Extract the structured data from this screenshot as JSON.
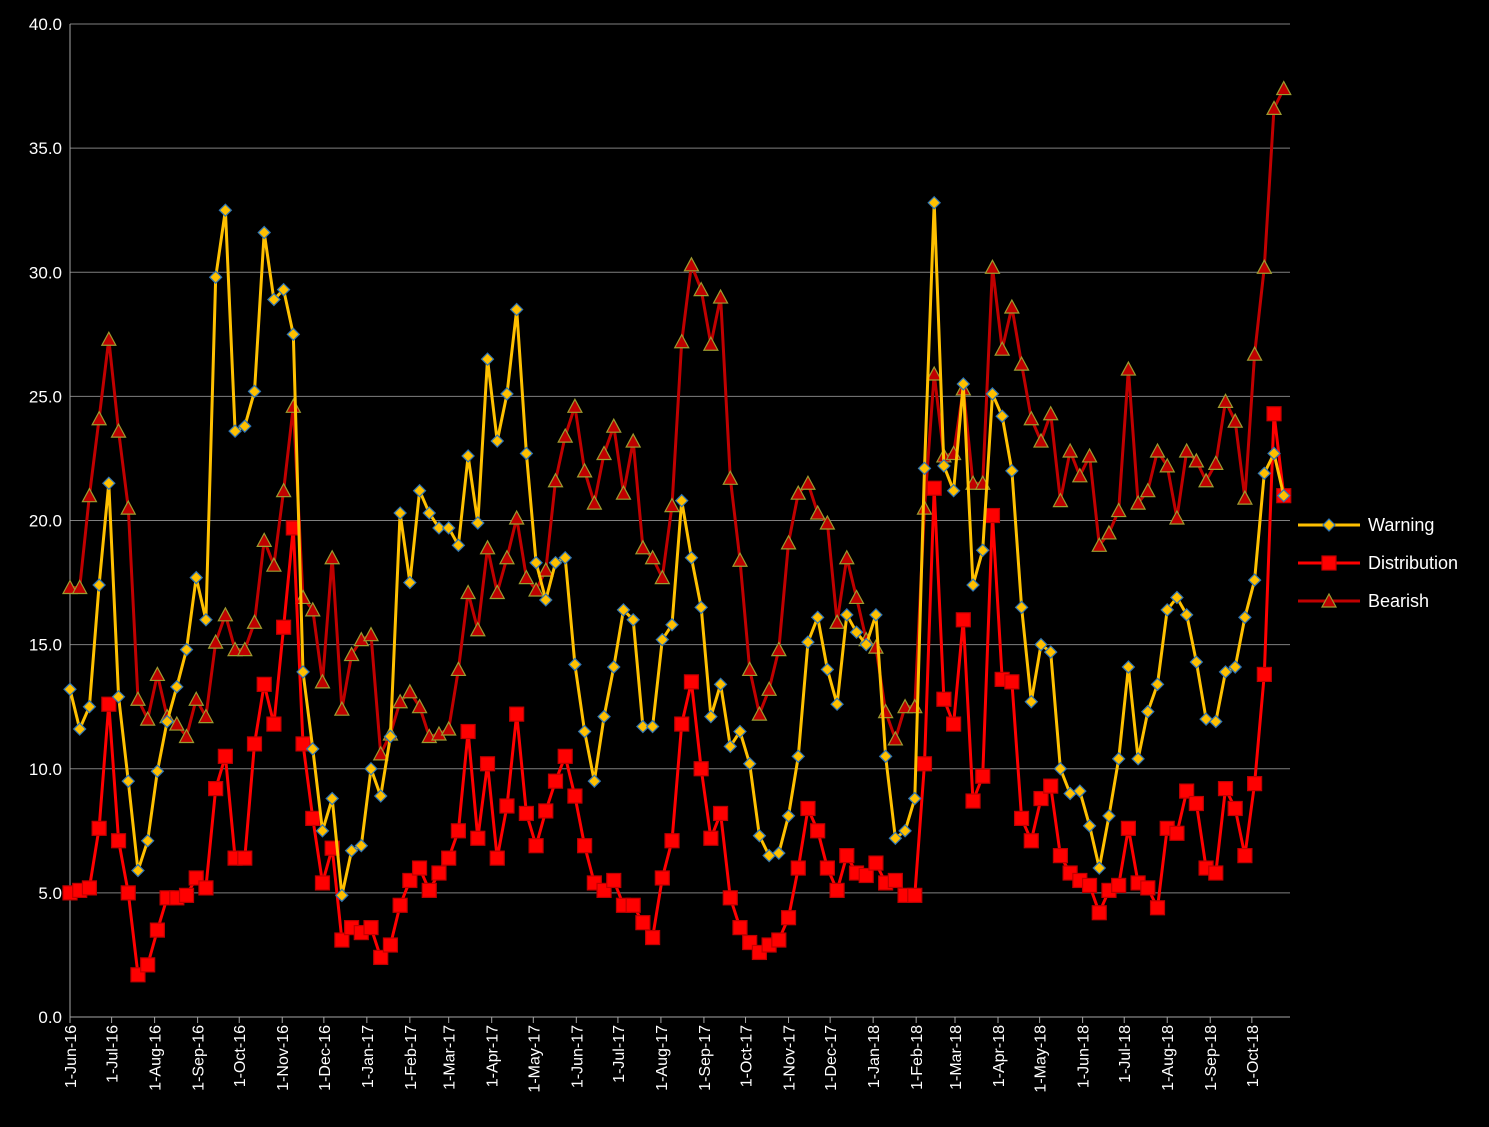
{
  "chart_data": {
    "type": "line",
    "title": "",
    "xlabel": "",
    "ylabel": "",
    "ylim": [
      0,
      40
    ],
    "yticks": [
      "0.0",
      "5.0",
      "10.0",
      "15.0",
      "20.0",
      "25.0",
      "30.0",
      "35.0",
      "40.0"
    ],
    "x_tick_labels": [
      "1-Jun-16",
      "1-Jul-16",
      "1-Aug-16",
      "1-Sep-16",
      "1-Oct-16",
      "1-Nov-16",
      "1-Dec-16",
      "1-Jan-17",
      "1-Feb-17",
      "1-Mar-17",
      "1-Apr-17",
      "1-May-17",
      "1-Jun-17",
      "1-Jul-17",
      "1-Aug-17",
      "1-Sep-17",
      "1-Oct-17",
      "1-Nov-17",
      "1-Dec-17",
      "1-Jan-18",
      "1-Feb-18",
      "1-Mar-18",
      "1-Apr-18",
      "1-May-18",
      "1-Jun-18",
      "1-Jul-18",
      "1-Aug-18",
      "1-Sep-18",
      "1-Oct-18"
    ],
    "x_note": "weekly observations starting 1-Jun-16",
    "gridlines": "horizontal",
    "legend_position": "right",
    "series": [
      {
        "name": "Warning",
        "color": "#FFC000",
        "marker": "diamond",
        "marker_fill": "#FFC000",
        "marker_edge": "#2E75B6",
        "values": [
          13.2,
          11.6,
          12.5,
          17.4,
          21.5,
          12.9,
          9.5,
          5.9,
          7.1,
          9.9,
          11.9,
          13.3,
          14.8,
          17.7,
          16.0,
          29.8,
          32.5,
          23.6,
          23.8,
          25.2,
          31.6,
          28.9,
          29.3,
          27.5,
          13.9,
          10.8,
          7.5,
          8.8,
          4.9,
          6.7,
          6.9,
          10.0,
          8.9,
          11.3,
          20.3,
          17.5,
          21.2,
          20.3,
          19.7,
          19.7,
          19.0,
          22.6,
          19.9,
          26.5,
          23.2,
          25.1,
          28.5,
          22.7,
          18.3,
          16.8,
          18.3,
          18.5,
          14.2,
          11.5,
          9.5,
          12.1,
          14.1,
          16.4,
          16.0,
          11.7,
          11.7,
          15.2,
          15.8,
          20.8,
          18.5,
          16.5,
          12.1,
          13.4,
          10.9,
          11.5,
          10.2,
          7.3,
          6.5,
          6.6,
          8.1,
          10.5,
          15.1,
          16.1,
          14.0,
          12.6,
          16.2,
          15.5,
          15.0,
          16.2,
          10.5,
          7.2,
          7.5,
          8.8,
          22.1,
          32.8,
          22.2,
          21.2,
          25.5,
          17.4,
          18.8,
          25.1,
          24.2,
          22.0,
          16.5,
          12.7,
          15.0,
          14.7,
          10.0,
          9.0,
          9.1,
          7.7,
          6.0,
          8.1,
          10.4,
          14.1,
          10.4,
          12.3,
          13.4,
          16.4,
          16.9,
          16.2,
          14.3,
          12.0,
          11.9,
          13.9,
          14.1,
          16.1,
          17.6,
          21.9,
          22.7,
          21.0
        ]
      },
      {
        "name": "Distribution",
        "color": "#FF0000",
        "marker": "square",
        "marker_fill": "#FF0000",
        "marker_edge": "#C00000",
        "values": [
          5.0,
          5.1,
          5.2,
          7.6,
          12.6,
          7.1,
          5.0,
          1.7,
          2.1,
          3.5,
          4.8,
          4.8,
          4.9,
          5.6,
          5.2,
          9.2,
          10.5,
          6.4,
          6.4,
          11.0,
          13.4,
          11.8,
          15.7,
          19.7,
          11.0,
          8.0,
          5.4,
          6.8,
          3.1,
          3.6,
          3.4,
          3.6,
          2.4,
          2.9,
          4.5,
          5.5,
          6.0,
          5.1,
          5.8,
          6.4,
          7.5,
          11.5,
          7.2,
          10.2,
          6.4,
          8.5,
          12.2,
          8.2,
          6.9,
          8.3,
          9.5,
          10.5,
          8.9,
          6.9,
          5.4,
          5.1,
          5.5,
          4.5,
          4.5,
          3.8,
          3.2,
          5.6,
          7.1,
          11.8,
          13.5,
          10.0,
          7.2,
          8.2,
          4.8,
          3.6,
          3.0,
          2.6,
          2.9,
          3.1,
          4.0,
          6.0,
          8.4,
          7.5,
          6.0,
          5.1,
          6.5,
          5.8,
          5.7,
          6.2,
          5.4,
          5.5,
          4.9,
          4.9,
          10.2,
          21.3,
          12.8,
          11.8,
          16.0,
          8.7,
          9.7,
          20.2,
          13.6,
          13.5,
          8.0,
          7.1,
          8.8,
          9.3,
          6.5,
          5.8,
          5.5,
          5.3,
          4.2,
          5.1,
          5.3,
          7.6,
          5.4,
          5.2,
          4.4,
          7.6,
          7.4,
          9.1,
          8.6,
          6.0,
          5.8,
          9.2,
          8.4,
          6.5,
          9.4,
          13.8,
          24.3,
          21.0
        ]
      },
      {
        "name": "Bearish",
        "color": "#C00000",
        "marker": "triangle",
        "marker_fill": "#C00000",
        "marker_edge": "#9C9C2F",
        "values": [
          17.3,
          17.3,
          21.0,
          24.1,
          27.3,
          23.6,
          20.5,
          12.8,
          12.0,
          13.8,
          12.1,
          11.8,
          11.3,
          12.8,
          12.1,
          15.1,
          16.2,
          14.8,
          14.8,
          15.9,
          19.2,
          18.2,
          21.2,
          24.6,
          16.9,
          16.4,
          13.5,
          18.5,
          12.4,
          14.6,
          15.2,
          15.4,
          10.6,
          11.4,
          12.7,
          13.1,
          12.5,
          11.3,
          11.4,
          11.6,
          14.0,
          17.1,
          15.6,
          18.9,
          17.1,
          18.5,
          20.1,
          17.7,
          17.2,
          18.0,
          21.6,
          23.4,
          24.6,
          22.0,
          20.7,
          22.7,
          23.8,
          21.1,
          23.2,
          18.9,
          18.5,
          17.7,
          20.6,
          27.2,
          30.3,
          29.3,
          27.1,
          29.0,
          21.7,
          18.4,
          14.0,
          12.2,
          13.2,
          14.8,
          19.1,
          21.1,
          21.5,
          20.3,
          19.9,
          15.9,
          18.5,
          16.9,
          15.2,
          14.9,
          12.3,
          11.2,
          12.5,
          12.5,
          20.5,
          25.9,
          22.6,
          22.7,
          25.3,
          21.5,
          21.5,
          30.2,
          26.9,
          28.6,
          26.3,
          24.1,
          23.2,
          24.3,
          20.8,
          22.8,
          21.8,
          22.6,
          19.0,
          19.5,
          20.4,
          26.1,
          20.7,
          21.2,
          22.8,
          22.2,
          20.1,
          22.8,
          22.4,
          21.6,
          22.3,
          24.8,
          24.0,
          20.9,
          26.7,
          30.2,
          36.6,
          37.4
        ]
      }
    ]
  }
}
